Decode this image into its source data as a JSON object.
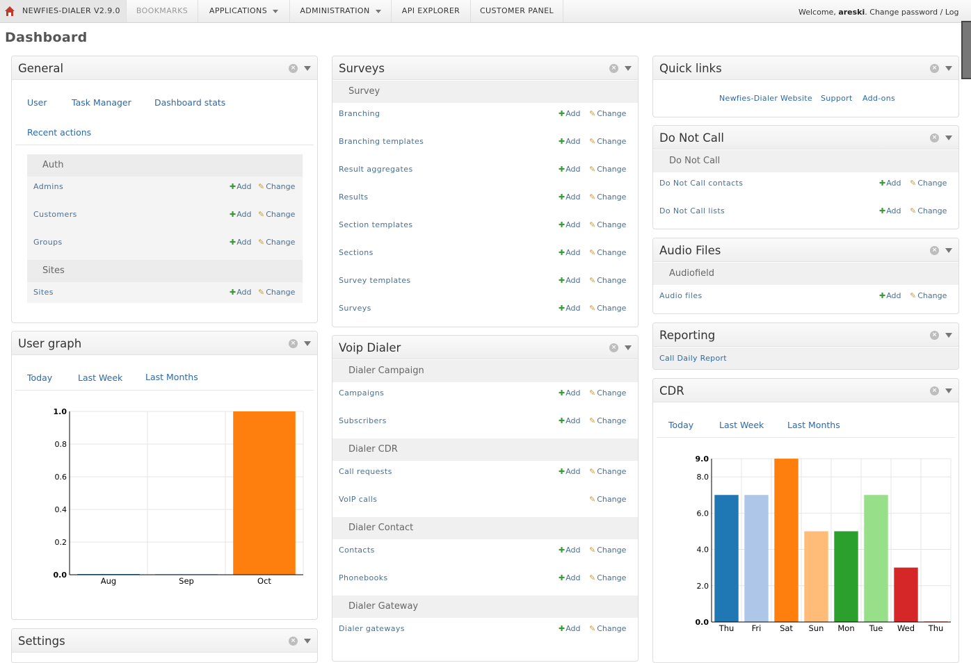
{
  "nav": {
    "brand": "NEWFIES-DIALER V2.9.0",
    "items": [
      {
        "label": "BOOKMARKS"
      },
      {
        "label": "APPLICATIONS"
      },
      {
        "label": "ADMINISTRATION"
      },
      {
        "label": "API EXPLORER"
      },
      {
        "label": "CUSTOMER PANEL"
      }
    ],
    "welcome": "Welcome,",
    "user": "areski",
    "change_password": "Change password",
    "sep": "/",
    "logout": "Log"
  },
  "page_title": "Dashboard",
  "general": {
    "title": "General",
    "links": [
      "User",
      "Task Manager",
      "Dashboard stats",
      "Recent actions"
    ],
    "auth_header": "Auth",
    "auth_rows": [
      "Admins",
      "Customers",
      "Groups"
    ],
    "sites_header": "Sites",
    "sites_rows": [
      "Sites"
    ]
  },
  "actions": {
    "add": "Add",
    "change": "Change"
  },
  "user_graph": {
    "title": "User graph",
    "tabs": [
      "Today",
      "Last Week",
      "Last Months"
    ]
  },
  "settings": {
    "title": "Settings"
  },
  "surveys": {
    "title": "Surveys",
    "section": "Survey",
    "rows": [
      "Branching",
      "Branching templates",
      "Result aggregates",
      "Results",
      "Section templates",
      "Sections",
      "Survey templates",
      "Surveys"
    ]
  },
  "voip": {
    "title": "Voip Dialer",
    "groups": [
      {
        "header": "Dialer Campaign",
        "rows": [
          {
            "label": "Campaigns",
            "add": true
          },
          {
            "label": "Subscribers",
            "add": true
          }
        ]
      },
      {
        "header": "Dialer CDR",
        "rows": [
          {
            "label": "Call requests",
            "add": true
          },
          {
            "label": "VoIP calls",
            "add": false
          }
        ]
      },
      {
        "header": "Dialer Contact",
        "rows": [
          {
            "label": "Contacts",
            "add": true
          },
          {
            "label": "Phonebooks",
            "add": true
          }
        ]
      },
      {
        "header": "Dialer Gateway",
        "rows": [
          {
            "label": "Dialer gateways",
            "add": true
          }
        ]
      }
    ]
  },
  "quick_links": {
    "title": "Quick links",
    "links": [
      "Newfies-Dialer Website",
      "Support",
      "Add-ons"
    ]
  },
  "dnc": {
    "title": "Do Not Call",
    "section": "Do Not Call",
    "rows": [
      "Do Not Call contacts",
      "Do Not Call lists"
    ]
  },
  "audio": {
    "title": "Audio Files",
    "section": "Audiofield",
    "rows": [
      "Audio files"
    ]
  },
  "reporting": {
    "title": "Reporting",
    "link": "Call Daily Report"
  },
  "cdr": {
    "title": "CDR",
    "tabs": [
      "Today",
      "Last Week",
      "Last Months"
    ]
  },
  "chart_data": [
    {
      "type": "bar",
      "categories": [
        "Aug",
        "Sep",
        "Oct"
      ],
      "values": [
        0,
        0,
        1
      ],
      "ylim": [
        0,
        1
      ],
      "yticks": [
        "0.0",
        "0.2",
        "0.4",
        "0.6",
        "0.8",
        "1.0"
      ],
      "colors": [
        "#1f77b4",
        "#aec7e8",
        "#ff7f0e"
      ],
      "grid": true
    },
    {
      "type": "bar",
      "categories": [
        "Thu",
        "Fri",
        "Sat",
        "Sun",
        "Mon",
        "Tue",
        "Wed",
        "Thu"
      ],
      "values": [
        7,
        7,
        9,
        5,
        5,
        7,
        3,
        0
      ],
      "ylim": [
        0,
        9
      ],
      "yticks": [
        "0.0",
        "2.0",
        "4.0",
        "6.0",
        "8.0",
        "9.0"
      ],
      "colors": [
        "#1f77b4",
        "#aec7e8",
        "#ff7f0e",
        "#ffbb78",
        "#2ca02c",
        "#98df8a",
        "#d62728",
        "#ff9896"
      ],
      "grid": true
    }
  ]
}
